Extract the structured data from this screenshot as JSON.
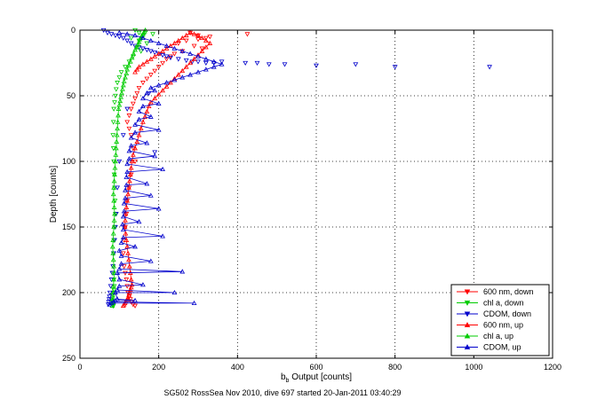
{
  "figure": {
    "caption": "SG502 RossSea Nov 2010, dive 697 started 20-Jan-2011 03:40:29"
  },
  "chart_data": {
    "type": "scatter",
    "title": "",
    "xlabel": "b",
    "xlabel_sub": "b",
    "xlabel_suffix": " Output [counts]",
    "ylabel": "Depth [counts]",
    "xlim": [
      0,
      1200
    ],
    "ylim": [
      0,
      250
    ],
    "y_reversed": true,
    "grid": true,
    "grid_style": "dotted",
    "legend_position": "bottom-right",
    "xticks": [
      0,
      200,
      400,
      600,
      800,
      1000,
      1200
    ],
    "yticks": [
      0,
      50,
      100,
      150,
      200,
      250
    ],
    "series": [
      {
        "name": "600 nm, down",
        "color": "#ff0000",
        "marker": "triangle-down",
        "lines": false,
        "x": [
          280,
          300,
          320,
          270,
          250,
          290,
          310,
          260,
          240,
          230,
          220,
          210,
          200,
          190,
          180,
          170,
          160,
          150,
          145,
          140,
          135,
          130,
          125,
          120,
          125,
          130,
          135,
          140,
          130,
          125,
          120,
          118,
          115,
          112,
          110,
          112,
          115,
          118,
          120,
          122,
          125,
          128,
          130,
          135,
          140,
          425,
          300,
          330
        ],
        "y": [
          2,
          4,
          6,
          8,
          10,
          12,
          14,
          16,
          18,
          20,
          22,
          25,
          28,
          31,
          34,
          37,
          40,
          44,
          48,
          52,
          56,
          60,
          65,
          70,
          75,
          80,
          90,
          100,
          110,
          120,
          130,
          140,
          150,
          160,
          170,
          180,
          185,
          190,
          195,
          200,
          203,
          205,
          207,
          209,
          210,
          3,
          7,
          5
        ]
      },
      {
        "name": "chl a, down",
        "color": "#00cc00",
        "marker": "triangle-down",
        "lines": false,
        "x": [
          140,
          150,
          160,
          130,
          150,
          170,
          145,
          155,
          135,
          125,
          115,
          105,
          100,
          95,
          92,
          90,
          88,
          86,
          85,
          84,
          85,
          86,
          87,
          88,
          89,
          90,
          88,
          86,
          85,
          84,
          85,
          86,
          87,
          86,
          85,
          84,
          83,
          82,
          82,
          83,
          84,
          84,
          85,
          185
        ],
        "y": [
          0,
          2,
          4,
          6,
          8,
          10,
          13,
          16,
          20,
          24,
          28,
          32,
          36,
          40,
          45,
          50,
          55,
          60,
          70,
          80,
          90,
          100,
          110,
          120,
          130,
          140,
          150,
          160,
          170,
          180,
          185,
          190,
          195,
          198,
          200,
          202,
          204,
          206,
          207,
          208,
          209,
          210,
          210,
          3
        ]
      },
      {
        "name": "CDOM, down",
        "color": "#0000cc",
        "marker": "triangle-down",
        "lines": false,
        "x": [
          60,
          70,
          80,
          90,
          100,
          110,
          120,
          130,
          140,
          150,
          160,
          170,
          180,
          190,
          200,
          210,
          220,
          230,
          250,
          270,
          285,
          300,
          320,
          340,
          360,
          420,
          450,
          480,
          520,
          600,
          700,
          800,
          1040,
          190,
          175,
          120,
          110,
          100,
          95,
          92,
          90,
          88,
          86,
          84,
          82,
          80,
          78,
          76,
          75,
          74,
          73,
          72
        ],
        "y": [
          0,
          2,
          3,
          4,
          5,
          6,
          8,
          10,
          12,
          13,
          14,
          15,
          16,
          17,
          18,
          19,
          20,
          21,
          22,
          23,
          24,
          24,
          25,
          25,
          24,
          25,
          25,
          26,
          26,
          27,
          26,
          28,
          28,
          93,
          48,
          60,
          80,
          100,
          120,
          140,
          150,
          160,
          170,
          180,
          185,
          190,
          195,
          200,
          203,
          205,
          207,
          209
        ]
      },
      {
        "name": "600 nm, up",
        "color": "#ff0000",
        "marker": "triangle-up",
        "lines": true,
        "x": [
          110,
          112,
          114,
          116,
          118,
          120,
          122,
          124,
          126,
          128,
          130,
          132,
          130,
          128,
          126,
          124,
          122,
          120,
          118,
          116,
          114,
          115,
          116,
          118,
          120,
          122,
          124,
          126,
          128,
          130,
          132,
          135,
          140,
          145,
          150,
          155,
          160,
          165,
          170,
          175,
          180,
          190,
          200,
          210,
          220,
          230,
          240,
          250,
          260,
          270,
          280,
          290,
          300,
          310,
          320,
          330,
          320,
          310,
          300,
          290,
          280,
          270,
          260,
          250,
          240,
          230,
          220,
          210,
          200,
          190,
          180,
          170,
          160,
          150,
          145,
          140
        ],
        "y": [
          210,
          209,
          208,
          207,
          206,
          205,
          204,
          202,
          200,
          198,
          196,
          194,
          190,
          185,
          180,
          175,
          170,
          165,
          160,
          155,
          150,
          145,
          140,
          135,
          130,
          125,
          120,
          115,
          110,
          105,
          100,
          95,
          90,
          85,
          80,
          75,
          70,
          66,
          62,
          58,
          55,
          52,
          49,
          46,
          43,
          40,
          37,
          34,
          31,
          28,
          25,
          22,
          19,
          16,
          13,
          10,
          8,
          6,
          4,
          3,
          2,
          4,
          6,
          8,
          10,
          12,
          14,
          16,
          18,
          20,
          22,
          24,
          26,
          28,
          30,
          32
        ]
      },
      {
        "name": "chl a, up",
        "color": "#00cc00",
        "marker": "triangle-up",
        "lines": true,
        "x": [
          82,
          83,
          84,
          85,
          86,
          87,
          86,
          85,
          84,
          83,
          84,
          85,
          86,
          87,
          88,
          87,
          86,
          85,
          86,
          87,
          88,
          89,
          90,
          91,
          92,
          93,
          94,
          95,
          96,
          97,
          98,
          100,
          102,
          104,
          106,
          108,
          110,
          112,
          115,
          118,
          120,
          124,
          128,
          132,
          136,
          140,
          144,
          148,
          150,
          152,
          154,
          156,
          158,
          160,
          162,
          164,
          166
        ],
        "y": [
          210,
          205,
          200,
          195,
          190,
          185,
          180,
          175,
          170,
          165,
          160,
          155,
          150,
          145,
          140,
          135,
          130,
          125,
          120,
          115,
          110,
          105,
          100,
          95,
          90,
          85,
          80,
          75,
          70,
          65,
          60,
          57,
          54,
          51,
          48,
          45,
          42,
          39,
          36,
          33,
          30,
          27,
          24,
          21,
          18,
          15,
          13,
          11,
          9,
          7,
          6,
          5,
          4,
          3,
          2,
          1,
          0
        ]
      },
      {
        "name": "CDOM, up",
        "color": "#0000cc",
        "marker": "triangle-up",
        "lines": true,
        "x": [
          75,
          80,
          290,
          85,
          90,
          140,
          95,
          90,
          240,
          95,
          100,
          160,
          100,
          95,
          260,
          100,
          105,
          180,
          105,
          100,
          140,
          105,
          110,
          210,
          110,
          108,
          150,
          110,
          112,
          200,
          112,
          115,
          180,
          115,
          118,
          170,
          118,
          120,
          210,
          120,
          125,
          190,
          125,
          130,
          170,
          130,
          140,
          200,
          140,
          150,
          180,
          150,
          160,
          200,
          160,
          170,
          190,
          180,
          200,
          220,
          240,
          260,
          280,
          300,
          320,
          340,
          360,
          340,
          320,
          300,
          280,
          260,
          240,
          220,
          200,
          180,
          160,
          140,
          120,
          100
        ],
        "y": [
          209,
          208,
          208,
          207,
          206,
          206,
          205,
          200,
          200,
          198,
          195,
          194,
          190,
          185,
          184,
          182,
          178,
          176,
          172,
          168,
          165,
          162,
          158,
          157,
          152,
          148,
          146,
          142,
          138,
          136,
          132,
          128,
          126,
          122,
          118,
          117,
          112,
          108,
          106,
          102,
          98,
          96,
          92,
          88,
          86,
          82,
          78,
          76,
          72,
          68,
          66,
          62,
          58,
          56,
          52,
          48,
          46,
          44,
          42,
          40,
          38,
          36,
          34,
          32,
          30,
          28,
          26,
          24,
          22,
          20,
          18,
          16,
          14,
          12,
          10,
          8,
          6,
          4,
          3,
          2
        ]
      }
    ]
  }
}
